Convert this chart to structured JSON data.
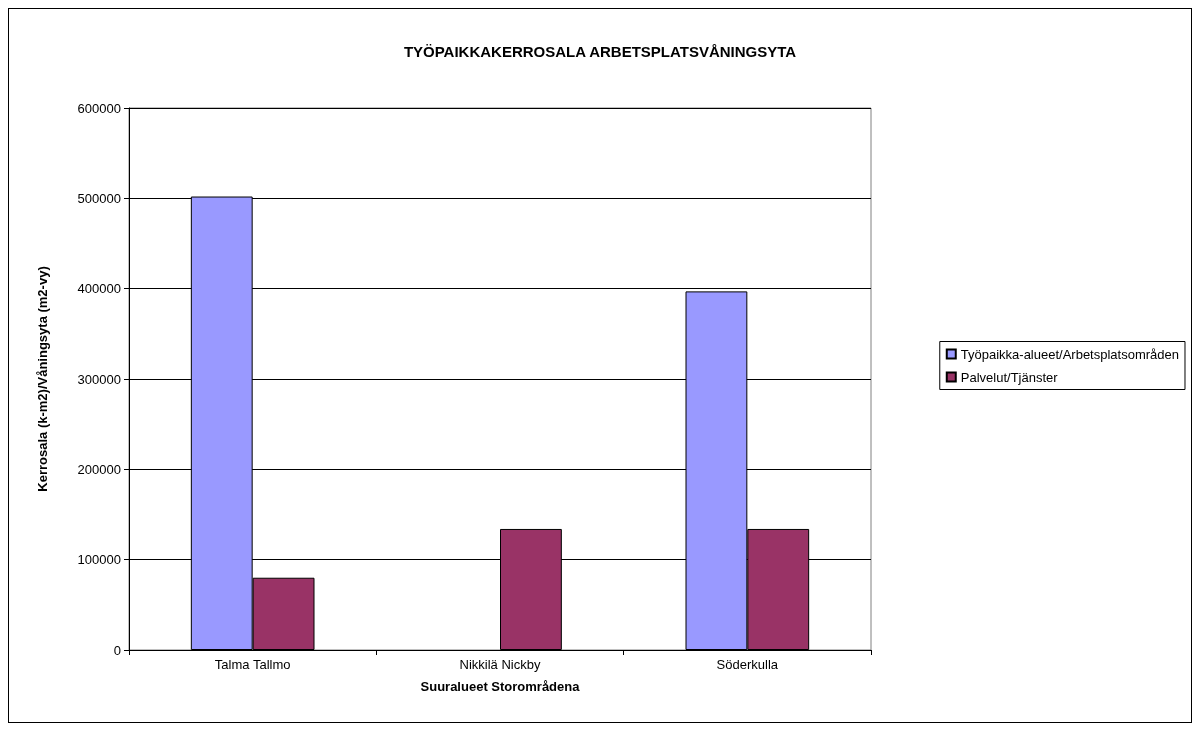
{
  "chart_data": {
    "type": "bar",
    "title": "TYÖPAIKKAKERROSALA ARBETSPLATSVÅNINGSYTA",
    "xlabel": "Suuralueet Storområdena",
    "ylabel": "Kerrosala (k-m2)/Våningsyta (m2-vy)",
    "categories": [
      "Talma Tallmo",
      "Nikkilä Nickby",
      "Söderkulla"
    ],
    "series": [
      {
        "name": "Työpaikka-alueet/Arbetsplatsområden",
        "color": "#9999ff",
        "values": [
          502000,
          null,
          397000
        ]
      },
      {
        "name": "Palvelut/Tjänster",
        "color": "#993366",
        "values": [
          80000,
          134000,
          134000
        ]
      }
    ],
    "ylim": [
      0,
      600000
    ],
    "yticks": [
      0,
      100000,
      200000,
      300000,
      400000,
      500000,
      600000
    ],
    "grid": "y",
    "legend": "right"
  }
}
